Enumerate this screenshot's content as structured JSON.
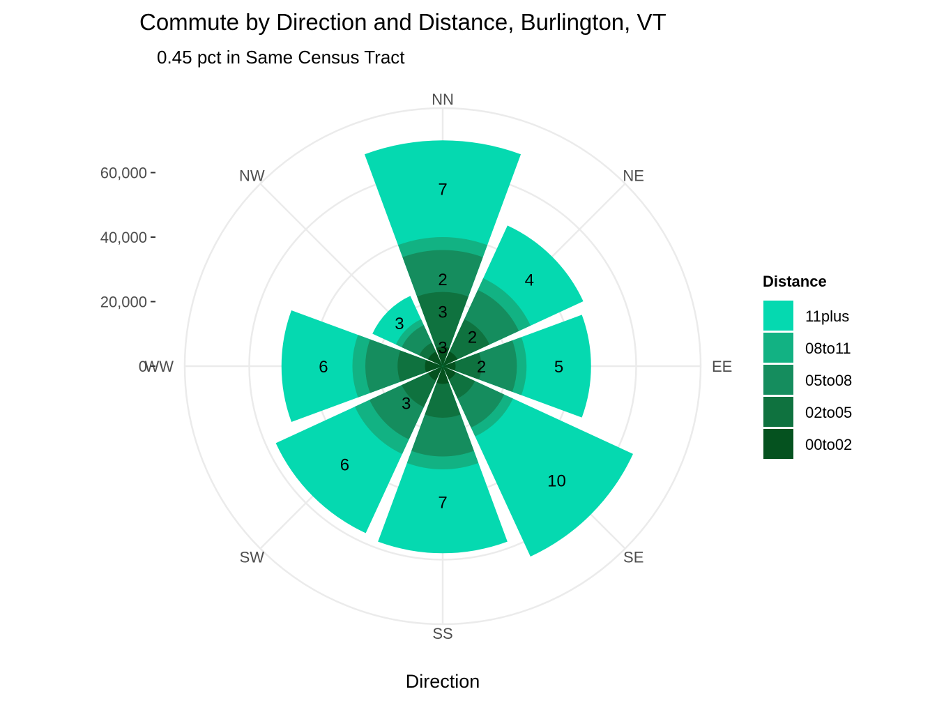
{
  "chart_data": {
    "type": "bar",
    "coord": "polar",
    "title": "Commute by Direction and Distance, Burlington, VT",
    "subtitle": "0.45 pct in Same Census Tract",
    "xlabel": "Direction",
    "ylabel": "",
    "ylim": [
      0,
      80000
    ],
    "y_ticks": [
      0,
      20000,
      40000,
      60000
    ],
    "y_tick_labels": [
      "0",
      "20,000",
      "40,000",
      "60,000"
    ],
    "grid": true,
    "legend": {
      "title": "Distance",
      "position": "right",
      "entries": [
        "11plus",
        "08to11",
        "05to08",
        "02to05",
        "00to02"
      ]
    },
    "colors": {
      "11plus": "#05d9b0",
      "08to11": "#12b283",
      "05to08": "#158d5e",
      "02to05": "#0f723f",
      "00to02": "#05521f",
      "grid": "#ebebeb"
    },
    "categories": [
      "NN",
      "NE",
      "EE",
      "SE",
      "SS",
      "SW",
      "WW",
      "NW"
    ],
    "series": [
      {
        "name": "00to02",
        "values": [
          6000,
          5000,
          4000,
          4500,
          5500,
          5000,
          5500,
          5000
        ]
      },
      {
        "name": "02to05",
        "values": [
          23000,
          16000,
          12000,
          11000,
          16000,
          14000,
          14000,
          8000
        ]
      },
      {
        "name": "05to08",
        "values": [
          36000,
          26000,
          23000,
          21000,
          28000,
          25000,
          24000,
          14000
        ]
      },
      {
        "name": "08to11",
        "values": [
          40000,
          30000,
          26000,
          24000,
          32000,
          30000,
          28000,
          16000
        ]
      },
      {
        "name": "11plus",
        "values": [
          70000,
          48000,
          46000,
          65000,
          58000,
          57000,
          50000,
          24000
        ]
      }
    ],
    "cumulative": true,
    "bar_labels": [
      {
        "category": "NN",
        "label": "7",
        "value": 55000
      },
      {
        "category": "NN",
        "label": "2",
        "value": 27000
      },
      {
        "category": "NN",
        "label": "3",
        "value": 17000
      },
      {
        "category": "NN",
        "label": "3",
        "value": 6000
      },
      {
        "category": "NE",
        "label": "4",
        "value": 38000
      },
      {
        "category": "NE",
        "label": "2",
        "value": 13000
      },
      {
        "category": "EE",
        "label": "5",
        "value": 36000
      },
      {
        "category": "EE",
        "label": "2",
        "value": 12000
      },
      {
        "category": "SE",
        "label": "10",
        "value": 50000
      },
      {
        "category": "SS",
        "label": "7",
        "value": 42000
      },
      {
        "category": "SW",
        "label": "6",
        "value": 43000
      },
      {
        "category": "SW",
        "label": "3",
        "value": 16000
      },
      {
        "category": "WW",
        "label": "6",
        "value": 37000
      },
      {
        "category": "NW",
        "label": "3",
        "value": 19000
      }
    ]
  }
}
